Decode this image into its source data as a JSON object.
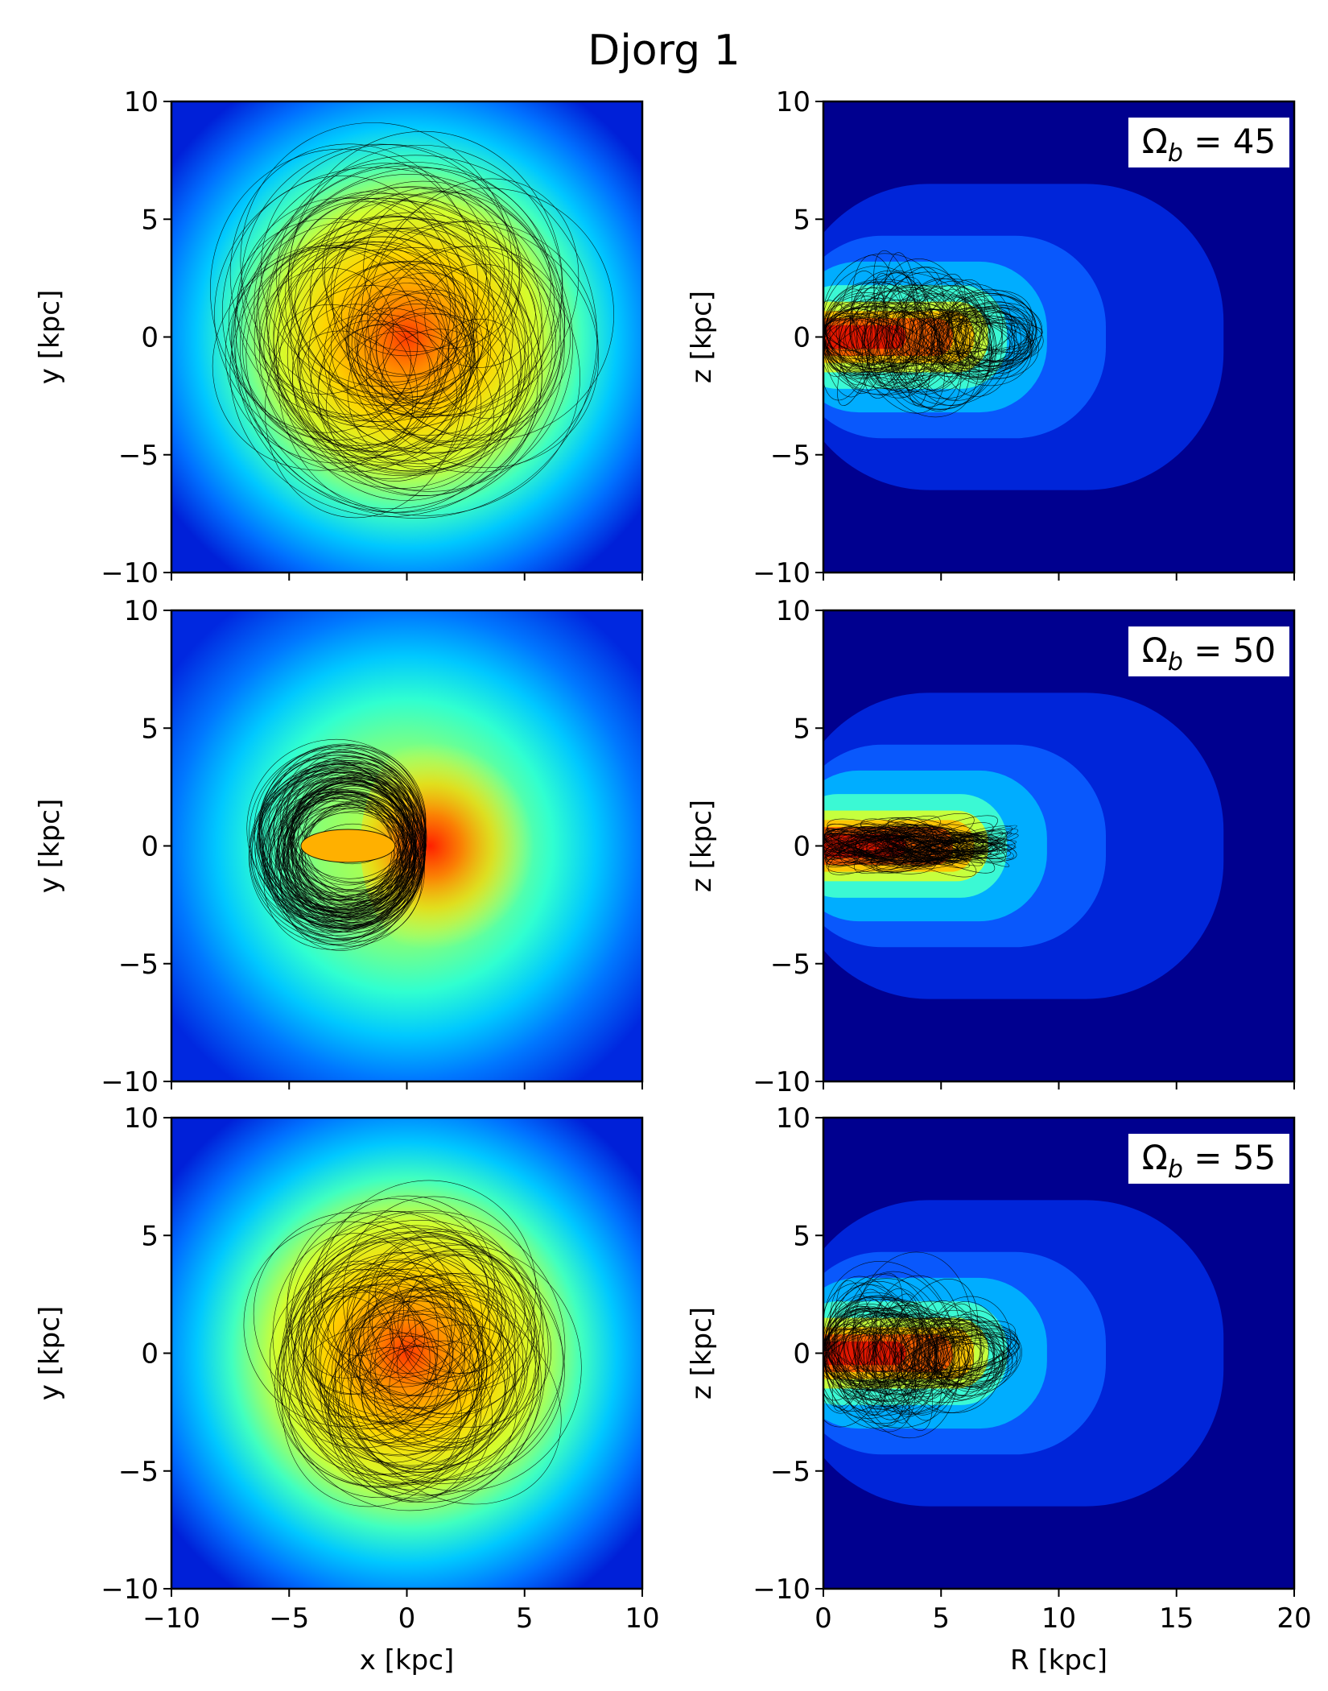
{
  "title": "Djorg 1",
  "colors": {
    "colormap": "jet",
    "orbit_line": "#000000",
    "annotation_box": "#ffffff"
  },
  "chart_data": [
    {
      "type": "heatmap",
      "row": 0,
      "col": 0,
      "projection": "xy",
      "xlabel": "",
      "ylabel": "y [kpc]",
      "xlim": [
        -10,
        10
      ],
      "ylim": [
        -10,
        10
      ],
      "xticks": [
        -10,
        -5,
        0,
        5,
        10
      ],
      "yticks": [
        -10,
        -5,
        0,
        5,
        10
      ],
      "xtick_labels_shown": false,
      "density_peak_x": 0,
      "density_peak_y": 0,
      "orbits": {
        "center_x": 0,
        "center_y": 0,
        "extent_radius": 8,
        "pattern": "rosette, loops around center"
      }
    },
    {
      "type": "heatmap",
      "row": 0,
      "col": 1,
      "projection": "Rz",
      "xlabel": "",
      "ylabel": "z [kpc]",
      "xlim": [
        0,
        20
      ],
      "ylim": [
        -10,
        10
      ],
      "xticks": [
        0,
        5,
        10,
        15,
        20
      ],
      "yticks": [
        -10,
        -5,
        0,
        5,
        10
      ],
      "xtick_labels_shown": false,
      "annotation": "Ω_b = 45",
      "orbits": {
        "R_range": [
          0,
          8
        ],
        "z_range": [
          -3.5,
          3.5
        ]
      }
    },
    {
      "type": "heatmap",
      "row": 1,
      "col": 0,
      "projection": "xy",
      "xlabel": "",
      "ylabel": "y [kpc]",
      "xlim": [
        -10,
        10
      ],
      "ylim": [
        -10,
        10
      ],
      "xticks": [
        -10,
        -5,
        0,
        5,
        10
      ],
      "yticks": [
        -10,
        -5,
        0,
        5,
        10
      ],
      "xtick_labels_shown": false,
      "density_peak_x": 1,
      "density_peak_y": 0,
      "orbits": {
        "center_x": -2.5,
        "center_y": 0,
        "extent_radius": 6,
        "pattern": "trapped loops on left side"
      }
    },
    {
      "type": "heatmap",
      "row": 1,
      "col": 1,
      "projection": "Rz",
      "xlabel": "",
      "ylabel": "z [kpc]",
      "xlim": [
        0,
        20
      ],
      "ylim": [
        -10,
        10
      ],
      "xticks": [
        0,
        5,
        10,
        15,
        20
      ],
      "yticks": [
        -10,
        -5,
        0,
        5,
        10
      ],
      "xtick_labels_shown": false,
      "annotation": "Ω_b = 50",
      "orbits": {
        "R_range": [
          0,
          7
        ],
        "z_range": [
          -1,
          1
        ]
      }
    },
    {
      "type": "heatmap",
      "row": 2,
      "col": 0,
      "projection": "xy",
      "xlabel": "x [kpc]",
      "ylabel": "y [kpc]",
      "xlim": [
        -10,
        10
      ],
      "ylim": [
        -10,
        10
      ],
      "xticks": [
        -10,
        -5,
        0,
        5,
        10
      ],
      "yticks": [
        -10,
        -5,
        0,
        5,
        10
      ],
      "xtick_labels_shown": true,
      "density_peak_x": 0,
      "density_peak_y": 0,
      "orbits": {
        "center_x": 0,
        "center_y": 0,
        "extent_radius": 6.5,
        "pattern": "rosette"
      }
    },
    {
      "type": "heatmap",
      "row": 2,
      "col": 1,
      "projection": "Rz",
      "xlabel": "R [kpc]",
      "ylabel": "z [kpc]",
      "xlim": [
        0,
        20
      ],
      "ylim": [
        -10,
        10
      ],
      "xticks": [
        0,
        5,
        10,
        15,
        20
      ],
      "yticks": [
        -10,
        -5,
        0,
        5,
        10
      ],
      "xtick_labels_shown": true,
      "annotation": "Ω_b = 55",
      "orbits": {
        "R_range": [
          0,
          7
        ],
        "z_range": [
          -4,
          3.5
        ]
      }
    }
  ]
}
